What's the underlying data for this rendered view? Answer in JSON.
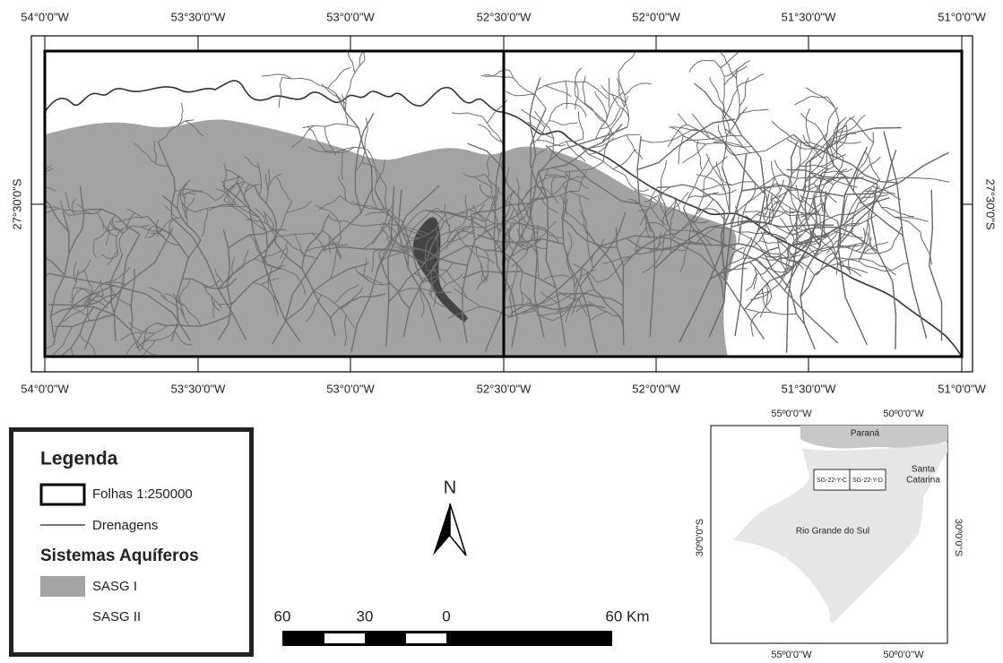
{
  "main_map": {
    "top_labels": [
      "54°0'0\"W",
      "53°30'0\"W",
      "53°0'0\"W",
      "52°30'0\"W",
      "52°0'0\"W",
      "51°30'0\"W",
      "51°0'0\"W"
    ],
    "bottom_labels": [
      "54°0'0\"W",
      "53°30'0\"W",
      "53°0'0\"W",
      "52°30'0\"W",
      "52°0'0\"W",
      "51°30'0\"W",
      "51°0'0\"W"
    ],
    "left_label": "27°30'0\"S",
    "right_label": "27°30'0\"S"
  },
  "legend": {
    "title": "Legenda",
    "items": [
      "Folhas 1:250000",
      "Drenagens"
    ],
    "subtitle": "Sistemas Aquíferos",
    "aquifers": [
      "SASG I",
      "SASG II"
    ]
  },
  "north_arrow": {
    "label": "N"
  },
  "scale_bar": {
    "labels": [
      "60",
      "30",
      "0",
      "60 Km"
    ]
  },
  "inset_map": {
    "top_labels": [
      "55º0'0''W",
      "50º0'0''W"
    ],
    "bottom_labels": [
      "55º0'0''W",
      "50º0'0''W"
    ],
    "left_label": "30º0'0''S",
    "right_label": "30º0'0''S",
    "regions": {
      "parana": "Paraná",
      "santa_catarina": [
        "Santa",
        "Catarina"
      ],
      "rio_grande": "Rio Grande do Sul"
    },
    "sheets": [
      "SG-22-Y-C",
      "SG-22-Y-D"
    ]
  }
}
